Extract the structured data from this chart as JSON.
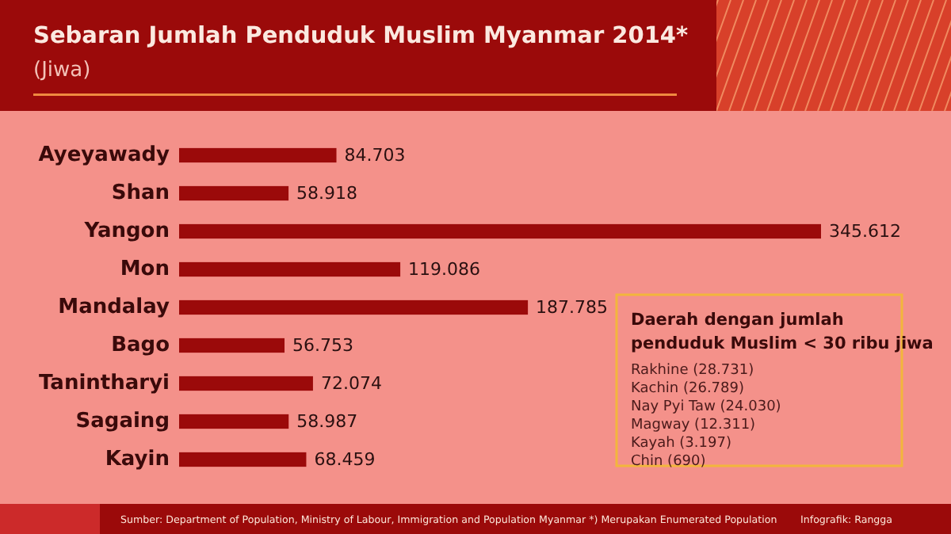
{
  "chart_data": {
    "type": "bar",
    "orientation": "horizontal",
    "title": "Sebaran Jumlah Penduduk Muslim Myanmar 2014*",
    "subtitle": "(Jiwa)",
    "categories": [
      "Ayeyawady",
      "Shan",
      "Yangon",
      "Mon",
      "Mandalay",
      "Bago",
      "Tanintharyi",
      "Sagaing",
      "Kayin"
    ],
    "values": [
      84703,
      58918,
      345612,
      119086,
      187785,
      56753,
      72074,
      58987,
      68459
    ],
    "value_labels": [
      "84.703",
      "58.918",
      "345.612",
      "119.086",
      "187.785",
      "56.753",
      "72.074",
      "58.987",
      "68.459"
    ],
    "color": "#9b0a0a",
    "annotations": [
      "Daerah dengan jumlah penduduk Muslim < 30 ribu jiwa",
      "Rakhine (28.731)",
      "Kachin (26.789)",
      "Nay Pyi Taw (24.030)",
      "Magway (12.311)",
      "Kayah (3.197)",
      "Chin (690)",
      "Sumber: Department of Population, Ministry of Labour, Immigration and Population Myanmar *) Merupakan Enumerated Population",
      "Infografik: Rangga"
    ]
  }
}
